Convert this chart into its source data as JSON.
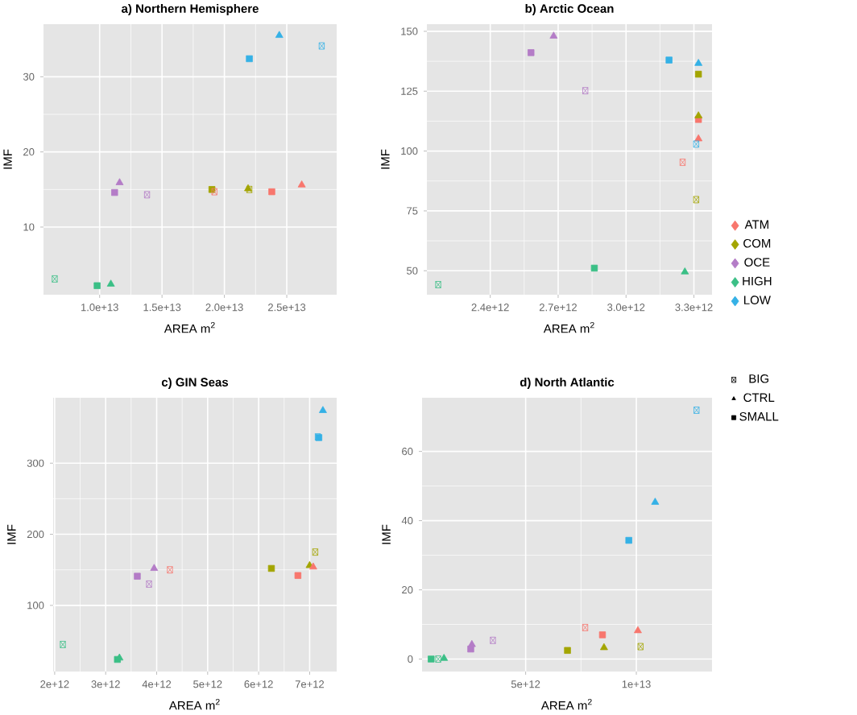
{
  "chart_data": [
    {
      "type": "scatter",
      "title": "a) Northern Hemisphere",
      "xlabel": "AREA m$^{2}$",
      "ylabel": "IMF",
      "grid": true,
      "xlim": [
        5500000000000.0,
        29000000000000.0
      ],
      "xticks": [
        {
          "value": 10000000000000.0,
          "label": "1.0e+13"
        },
        {
          "value": 15000000000000.0,
          "label": "1.5e+13"
        },
        {
          "value": 20000000000000.0,
          "label": "2.0e+13"
        },
        {
          "value": 25000000000000.0,
          "label": "2.5e+13"
        }
      ],
      "ylim": [
        1,
        37
      ],
      "yticks": [
        10,
        20,
        30
      ],
      "series": [
        {
          "marker": "cross",
          "x": [
            19200000000000.0,
            22000000000000.0,
            13800000000000.0,
            6400000000000.0,
            27800000000000.0
          ],
          "values": [
            14.7,
            15.0,
            14.3,
            3.1,
            34.1
          ],
          "colors": [
            "#F8766D",
            "#A3A500",
            "#B47CC7",
            "#3BBF86",
            "#35B1E6"
          ]
        },
        {
          "marker": "triangle",
          "x": [
            26200000000000.0,
            21900000000000.0,
            11600000000000.0,
            10900000000000.0,
            24400000000000.0
          ],
          "values": [
            15.6,
            15.1,
            15.9,
            2.4,
            35.5
          ],
          "colors": [
            "#F8766D",
            "#A3A500",
            "#B47CC7",
            "#3BBF86",
            "#35B1E6"
          ]
        },
        {
          "marker": "square",
          "x": [
            23800000000000.0,
            19000000000000.0,
            11200000000000.0,
            9800000000000.0,
            22000000000000.0
          ],
          "values": [
            14.7,
            15.0,
            14.6,
            2.2,
            32.4
          ],
          "colors": [
            "#F8766D",
            "#A3A500",
            "#B47CC7",
            "#3BBF86",
            "#35B1E6"
          ]
        }
      ]
    },
    {
      "type": "scatter",
      "title": "b) Arctic Ocean",
      "xlabel": "AREA m$^{2}$",
      "ylabel": "IMF",
      "grid": true,
      "legend": "right",
      "xlim": [
        2120000000000.0,
        3380000000000.0
      ],
      "xticks": [
        {
          "value": 2400000000000.0,
          "label": "2.4e+12"
        },
        {
          "value": 2700000000000.0,
          "label": "2.7e+12"
        },
        {
          "value": 3000000000000.0,
          "label": "3.0e+12"
        },
        {
          "value": 3300000000000.0,
          "label": "3.3e+12"
        }
      ],
      "ylim": [
        40,
        153
      ],
      "yticks": [
        50,
        75,
        100,
        125,
        150
      ],
      "series": [
        {
          "marker": "cross",
          "x": [
            3250000000000.0,
            3310000000000.0,
            2820000000000.0,
            2170000000000.0,
            3310000000000.0
          ],
          "values": [
            95.3,
            79.7,
            125.2,
            44.2,
            102.9
          ],
          "colors": [
            "#F8766D",
            "#A3A500",
            "#B47CC7",
            "#3BBF86",
            "#35B1E6"
          ]
        },
        {
          "marker": "triangle",
          "x": [
            3320000000000.0,
            3320000000000.0,
            2680000000000.0,
            3260000000000.0,
            3320000000000.0
          ],
          "values": [
            105.1,
            114.7,
            148,
            49.5,
            136.6
          ],
          "colors": [
            "#F8766D",
            "#A3A500",
            "#B47CC7",
            "#3BBF86",
            "#35B1E6"
          ]
        },
        {
          "marker": "square",
          "x": [
            3320000000000.0,
            3320000000000.0,
            2580000000000.0,
            2860000000000.0,
            3190000000000.0
          ],
          "values": [
            113.2,
            132.1,
            141.1,
            51.1,
            138
          ],
          "colors": [
            "#F8766D",
            "#A3A500",
            "#B47CC7",
            "#3BBF86",
            "#35B1E6"
          ]
        },
        {
          "name": "ATM",
          "color": "#F8766D",
          "marker": "diamond"
        },
        {
          "name": "COM",
          "color": "#A3A500",
          "marker": "diamond"
        },
        {
          "name": "OCE",
          "color": "#B47CC7",
          "marker": "diamond"
        },
        {
          "name": "HIGH",
          "color": "#3BBF86",
          "marker": "diamond"
        },
        {
          "name": "LOW",
          "color": "#35B1E6",
          "marker": "diamond"
        }
      ]
    },
    {
      "type": "scatter",
      "title": "c) GIN Seas",
      "xlabel": "AREA m$^{2}$",
      "ylabel": "IMF",
      "grid": true,
      "xlim": [
        1970000000000.0,
        7530000000000.0
      ],
      "xticks": [
        {
          "value": 2000000000000.0,
          "label": "2e+12"
        },
        {
          "value": 3000000000000.0,
          "label": "3e+12"
        },
        {
          "value": 4000000000000.0,
          "label": "4e+12"
        },
        {
          "value": 5000000000000.0,
          "label": "5e+12"
        },
        {
          "value": 6000000000000.0,
          "label": "6e+12"
        },
        {
          "value": 7000000000000.0,
          "label": "7e+12"
        }
      ],
      "ylim": [
        7,
        392
      ],
      "yticks": [
        100,
        200,
        300
      ],
      "series": [
        {
          "marker": "cross",
          "x": [
            4260000000000.0,
            7110000000000.0,
            3850000000000.0,
            2160000000000.0,
            7160000000000.0
          ],
          "values": [
            150,
            175,
            130,
            45,
            337
          ],
          "colors": [
            "#F8766D",
            "#A3A500",
            "#B47CC7",
            "#3BBF86",
            "#35B1E6"
          ]
        },
        {
          "marker": "triangle",
          "x": [
            7070000000000.0,
            7000000000000.0,
            3950000000000.0,
            3270000000000.0,
            7260000000000.0
          ],
          "values": [
            154,
            156,
            152,
            26,
            374
          ],
          "colors": [
            "#F8766D",
            "#A3A500",
            "#B47CC7",
            "#3BBF86",
            "#35B1E6"
          ]
        },
        {
          "marker": "square",
          "x": [
            6770000000000.0,
            6250000000000.0,
            3620000000000.0,
            3230000000000.0,
            7180000000000.0
          ],
          "values": [
            142,
            152,
            141,
            24,
            336
          ],
          "colors": [
            "#F8766D",
            "#A3A500",
            "#B47CC7",
            "#3BBF86",
            "#35B1E6"
          ]
        }
      ]
    },
    {
      "type": "scatter",
      "title": "d) North Atlantic",
      "xlabel": "AREA m$^{2}$",
      "ylabel": "IMF",
      "grid": true,
      "legend": "right",
      "xlim": [
        320000000000.0,
        13420000000000.0
      ],
      "xticks": [
        {
          "value": 5000000000000.0,
          "label": "5e+12"
        },
        {
          "value": 10000000000000.0,
          "label": "1e+13"
        }
      ],
      "ylim": [
        -3.6,
        75.5
      ],
      "yticks": [
        0,
        20,
        40,
        60
      ],
      "series": [
        {
          "name": "BIG",
          "marker": "cross",
          "x": [
            7690000000000.0,
            10190000000000.0,
            3520000000000.0,
            1050000000000.0,
            12720000000000.0
          ],
          "values": [
            9.1,
            3.6,
            5.4,
            0,
            71.9
          ],
          "colors": [
            "#F8766D",
            "#A3A500",
            "#B47CC7",
            "#3BBF86",
            "#35B1E6"
          ]
        },
        {
          "name": "CTRL",
          "marker": "triangle",
          "x": [
            10070000000000.0,
            8540000000000.0,
            2570000000000.0,
            1310000000000.0,
            10850000000000.0
          ],
          "values": [
            8.2,
            3.3,
            4.2,
            0.2,
            45.3
          ],
          "colors": [
            "#F8766D",
            "#A3A500",
            "#B47CC7",
            "#3BBF86",
            "#35B1E6"
          ]
        },
        {
          "name": "SMALL",
          "marker": "square",
          "x": [
            8470000000000.0,
            6890000000000.0,
            2520000000000.0,
            730000000000.0,
            9660000000000.0
          ],
          "values": [
            7.0,
            2.5,
            2.9,
            0,
            34.3
          ],
          "colors": [
            "#F8766D",
            "#A3A500",
            "#B47CC7",
            "#3BBF86",
            "#35B1E6"
          ]
        }
      ]
    }
  ]
}
